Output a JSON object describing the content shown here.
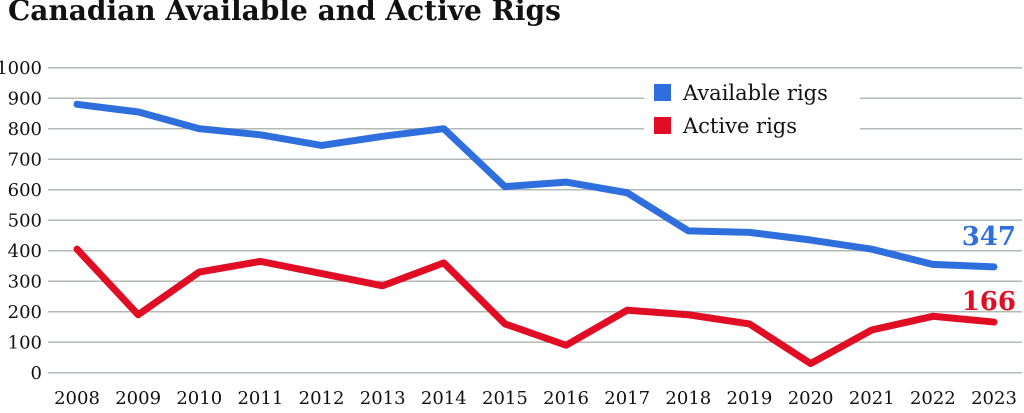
{
  "title": "Canadian Available and Active Rigs",
  "legend": {
    "items": [
      {
        "label": "Available rigs",
        "color": "#2f6fdd"
      },
      {
        "label": "Active rigs",
        "color": "#e00d24"
      }
    ]
  },
  "end_labels": {
    "available": "347",
    "active": "166"
  },
  "colors": {
    "grid": "#b3bab3",
    "tick_text": "#111111"
  },
  "chart_data": {
    "type": "line",
    "title": "Canadian Available and Active Rigs",
    "x": [
      2008,
      2009,
      2010,
      2011,
      2012,
      2013,
      2014,
      2015,
      2016,
      2017,
      2018,
      2019,
      2020,
      2021,
      2022,
      2023
    ],
    "series": [
      {
        "name": "Available rigs",
        "color": "#2f6fdd",
        "values": [
          880,
          855,
          800,
          780,
          745,
          775,
          800,
          610,
          625,
          590,
          465,
          460,
          435,
          405,
          355,
          347
        ]
      },
      {
        "name": "Active rigs",
        "color": "#e00d24",
        "values": [
          405,
          190,
          330,
          365,
          325,
          285,
          360,
          160,
          90,
          205,
          190,
          160,
          30,
          140,
          185,
          166
        ]
      }
    ],
    "xlabel": "",
    "ylabel": "",
    "ylim": [
      0,
      1000
    ],
    "yticks": [
      0,
      100,
      200,
      300,
      400,
      500,
      600,
      700,
      800,
      900,
      1000
    ],
    "grid": true,
    "legend_position": "top-right",
    "end_value_labels": {
      "Available rigs": 347,
      "Active rigs": 166
    }
  }
}
